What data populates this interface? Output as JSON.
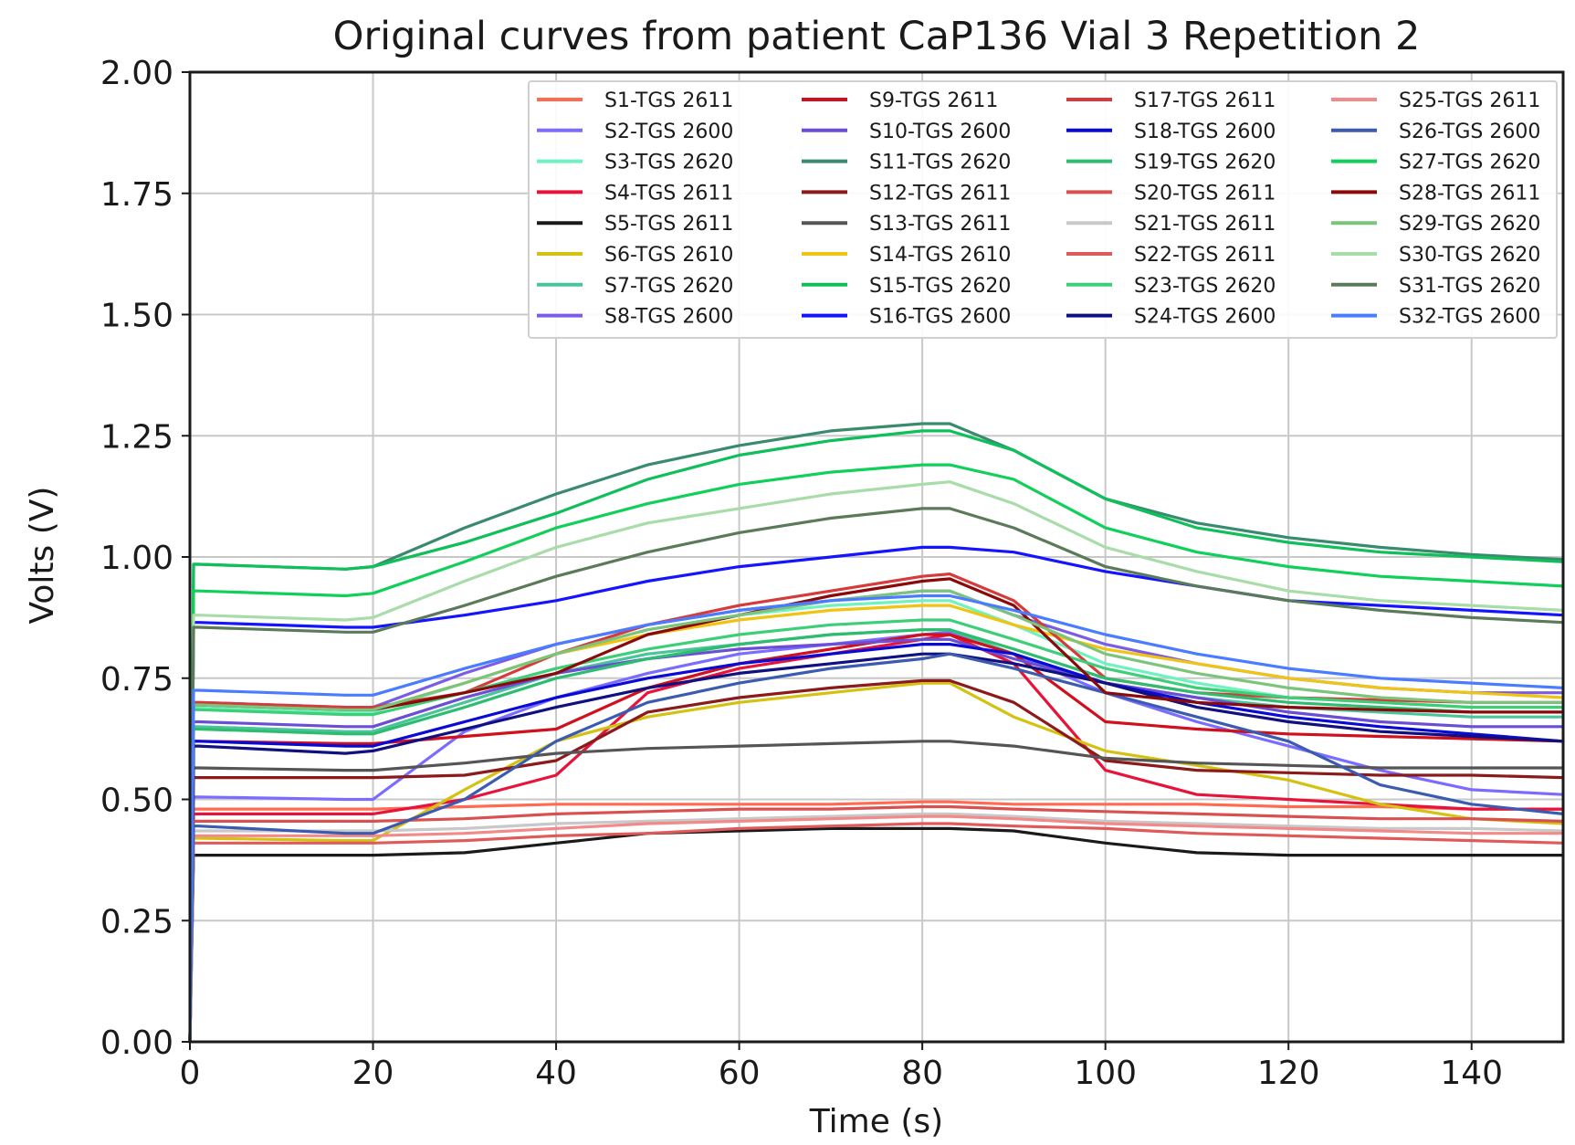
{
  "chart_data": {
    "type": "line",
    "title": "Original curves from patient CaP136 Vial 3 Repetition 2",
    "xlabel": "Time (s)",
    "ylabel": "Volts (V)",
    "xlim": [
      0,
      150
    ],
    "ylim": [
      0,
      2
    ],
    "grid": true,
    "legend_position": "top-right",
    "legend_columns": 4,
    "x_ticks": [
      0,
      20,
      40,
      60,
      80,
      100,
      120,
      140
    ],
    "y_ticks": [
      0,
      0.25,
      0.5,
      0.75,
      1.0,
      1.25,
      1.5,
      1.75,
      2.0
    ],
    "x_tick_labels": [
      "0",
      "20",
      "40",
      "60",
      "80",
      "100",
      "120",
      "140"
    ],
    "y_tick_labels": [
      "0.00",
      "0.25",
      "0.50",
      "0.75",
      "1.00",
      "1.25",
      "1.50",
      "1.75",
      "2.00"
    ],
    "x": [
      0,
      17,
      20,
      30,
      40,
      50,
      60,
      70,
      80,
      83,
      90,
      100,
      110,
      120,
      130,
      140,
      150
    ],
    "series": [
      {
        "name": "S1-TGS 2611",
        "color": "#ff6a50",
        "values": [
          0.48,
          0.48,
          0.48,
          0.485,
          0.49,
          0.49,
          0.49,
          0.49,
          0.495,
          0.495,
          0.49,
          0.49,
          0.49,
          0.485,
          0.485,
          0.48,
          0.48
        ]
      },
      {
        "name": "S2-TGS 2600",
        "color": "#7b6cff",
        "values": [
          0.505,
          0.5,
          0.5,
          0.64,
          0.71,
          0.76,
          0.8,
          0.82,
          0.84,
          0.845,
          0.8,
          0.72,
          0.66,
          0.61,
          0.56,
          0.52,
          0.51
        ]
      },
      {
        "name": "S3-TGS 2620",
        "color": "#6ef2c0",
        "values": [
          0.69,
          0.68,
          0.68,
          0.74,
          0.8,
          0.85,
          0.88,
          0.9,
          0.91,
          0.91,
          0.86,
          0.78,
          0.74,
          0.71,
          0.7,
          0.69,
          0.69
        ]
      },
      {
        "name": "S4-TGS 2611",
        "color": "#e8133a",
        "values": [
          0.47,
          0.47,
          0.47,
          0.5,
          0.55,
          0.72,
          0.77,
          0.8,
          0.83,
          0.84,
          0.78,
          0.56,
          0.51,
          0.5,
          0.49,
          0.48,
          0.48
        ]
      },
      {
        "name": "S5-TGS 2611",
        "color": "#1a1a1a",
        "values": [
          0.385,
          0.385,
          0.385,
          0.39,
          0.41,
          0.43,
          0.435,
          0.44,
          0.44,
          0.44,
          0.435,
          0.41,
          0.39,
          0.385,
          0.385,
          0.385,
          0.385
        ]
      },
      {
        "name": "S6-TGS 2610",
        "color": "#d4c212",
        "values": [
          0.42,
          0.415,
          0.415,
          0.52,
          0.62,
          0.67,
          0.7,
          0.72,
          0.74,
          0.74,
          0.67,
          0.6,
          0.57,
          0.54,
          0.49,
          0.46,
          0.45
        ]
      },
      {
        "name": "S7-TGS 2620",
        "color": "#4ac49a",
        "values": [
          0.65,
          0.64,
          0.64,
          0.7,
          0.76,
          0.8,
          0.82,
          0.84,
          0.85,
          0.85,
          0.8,
          0.74,
          0.71,
          0.69,
          0.68,
          0.67,
          0.67
        ]
      },
      {
        "name": "S8-TGS 2600",
        "color": "#7a5ce6",
        "values": [
          0.7,
          0.69,
          0.69,
          0.76,
          0.82,
          0.86,
          0.89,
          0.91,
          0.93,
          0.93,
          0.88,
          0.82,
          0.78,
          0.75,
          0.73,
          0.72,
          0.72
        ]
      },
      {
        "name": "S9-TGS 2611",
        "color": "#d0101c",
        "values": [
          0.62,
          0.615,
          0.615,
          0.63,
          0.645,
          0.73,
          0.78,
          0.81,
          0.84,
          0.84,
          0.8,
          0.66,
          0.645,
          0.635,
          0.63,
          0.625,
          0.62
        ]
      },
      {
        "name": "S10-TGS 2600",
        "color": "#6a4ed6",
        "values": [
          0.66,
          0.65,
          0.65,
          0.71,
          0.76,
          0.79,
          0.81,
          0.82,
          0.83,
          0.83,
          0.79,
          0.74,
          0.71,
          0.68,
          0.66,
          0.65,
          0.65
        ]
      },
      {
        "name": "S11-TGS 2620",
        "color": "#3a8a6e",
        "values": [
          0.985,
          0.975,
          0.98,
          1.06,
          1.13,
          1.19,
          1.23,
          1.26,
          1.275,
          1.275,
          1.22,
          1.12,
          1.07,
          1.04,
          1.02,
          1.005,
          0.995
        ]
      },
      {
        "name": "S12-TGS 2611",
        "color": "#8b1a1a",
        "values": [
          0.545,
          0.545,
          0.545,
          0.55,
          0.58,
          0.68,
          0.71,
          0.73,
          0.745,
          0.745,
          0.7,
          0.58,
          0.56,
          0.555,
          0.55,
          0.55,
          0.545
        ]
      },
      {
        "name": "S13-TGS 2611",
        "color": "#555555",
        "values": [
          0.565,
          0.56,
          0.56,
          0.575,
          0.595,
          0.605,
          0.61,
          0.615,
          0.62,
          0.62,
          0.61,
          0.585,
          0.575,
          0.57,
          0.565,
          0.565,
          0.565
        ]
      },
      {
        "name": "S14-TGS 2610",
        "color": "#f0c412",
        "values": [
          0.695,
          0.685,
          0.685,
          0.74,
          0.8,
          0.84,
          0.87,
          0.89,
          0.9,
          0.9,
          0.86,
          0.81,
          0.78,
          0.75,
          0.73,
          0.72,
          0.71
        ]
      },
      {
        "name": "S15-TGS 2620",
        "color": "#0fbf5a",
        "values": [
          0.985,
          0.975,
          0.98,
          1.03,
          1.09,
          1.16,
          1.21,
          1.24,
          1.26,
          1.26,
          1.22,
          1.12,
          1.06,
          1.03,
          1.01,
          1.0,
          0.99
        ]
      },
      {
        "name": "S16-TGS 2600",
        "color": "#1414ff",
        "values": [
          0.865,
          0.855,
          0.855,
          0.88,
          0.91,
          0.95,
          0.98,
          1.0,
          1.02,
          1.02,
          1.01,
          0.97,
          0.94,
          0.91,
          0.9,
          0.89,
          0.88
        ]
      },
      {
        "name": "S17-TGS 2611",
        "color": "#d63a3a",
        "values": [
          0.7,
          0.69,
          0.69,
          0.72,
          0.8,
          0.86,
          0.9,
          0.93,
          0.96,
          0.965,
          0.91,
          0.75,
          0.72,
          0.71,
          0.705,
          0.7,
          0.7
        ]
      },
      {
        "name": "S18-TGS 2600",
        "color": "#0a0ad6",
        "values": [
          0.62,
          0.61,
          0.61,
          0.66,
          0.71,
          0.75,
          0.78,
          0.8,
          0.82,
          0.82,
          0.8,
          0.74,
          0.7,
          0.67,
          0.65,
          0.635,
          0.62
        ]
      },
      {
        "name": "S19-TGS 2620",
        "color": "#2ebd70",
        "values": [
          0.645,
          0.635,
          0.635,
          0.69,
          0.75,
          0.79,
          0.82,
          0.84,
          0.85,
          0.85,
          0.81,
          0.75,
          0.72,
          0.7,
          0.69,
          0.68,
          0.68
        ]
      },
      {
        "name": "S20-TGS 2611",
        "color": "#d95050",
        "values": [
          0.455,
          0.455,
          0.455,
          0.46,
          0.47,
          0.475,
          0.48,
          0.48,
          0.485,
          0.485,
          0.48,
          0.475,
          0.47,
          0.465,
          0.46,
          0.46,
          0.455
        ]
      },
      {
        "name": "S21-TGS 2611",
        "color": "#c8c8c8",
        "values": [
          0.435,
          0.435,
          0.435,
          0.44,
          0.45,
          0.455,
          0.46,
          0.465,
          0.47,
          0.47,
          0.465,
          0.455,
          0.45,
          0.445,
          0.44,
          0.44,
          0.435
        ]
      },
      {
        "name": "S22-TGS 2611",
        "color": "#e05a5a",
        "values": [
          0.41,
          0.41,
          0.41,
          0.415,
          0.425,
          0.43,
          0.44,
          0.445,
          0.45,
          0.45,
          0.445,
          0.44,
          0.43,
          0.425,
          0.42,
          0.415,
          0.41
        ]
      },
      {
        "name": "S23-TGS 2620",
        "color": "#3ccf78",
        "values": [
          0.685,
          0.675,
          0.675,
          0.72,
          0.77,
          0.81,
          0.84,
          0.86,
          0.87,
          0.87,
          0.83,
          0.77,
          0.73,
          0.71,
          0.7,
          0.69,
          0.69
        ]
      },
      {
        "name": "S24-TGS 2600",
        "color": "#101080",
        "values": [
          0.61,
          0.595,
          0.6,
          0.645,
          0.69,
          0.73,
          0.76,
          0.78,
          0.8,
          0.8,
          0.78,
          0.74,
          0.69,
          0.66,
          0.64,
          0.63,
          0.62
        ]
      },
      {
        "name": "S25-TGS 2611",
        "color": "#f28a8a",
        "values": [
          0.425,
          0.425,
          0.425,
          0.43,
          0.44,
          0.45,
          0.455,
          0.46,
          0.465,
          0.465,
          0.46,
          0.45,
          0.445,
          0.44,
          0.435,
          0.43,
          0.43
        ]
      },
      {
        "name": "S26-TGS 2600",
        "color": "#3b5bb0",
        "values": [
          0.445,
          0.43,
          0.43,
          0.5,
          0.62,
          0.7,
          0.74,
          0.77,
          0.79,
          0.8,
          0.77,
          0.72,
          0.67,
          0.62,
          0.53,
          0.49,
          0.47
        ]
      },
      {
        "name": "S27-TGS 2620",
        "color": "#10d05a",
        "values": [
          0.93,
          0.92,
          0.925,
          0.99,
          1.06,
          1.11,
          1.15,
          1.175,
          1.19,
          1.19,
          1.16,
          1.06,
          1.01,
          0.98,
          0.96,
          0.95,
          0.94
        ]
      },
      {
        "name": "S28-TGS 2611",
        "color": "#8a0a0a",
        "values": [
          0.695,
          0.685,
          0.685,
          0.72,
          0.76,
          0.84,
          0.88,
          0.92,
          0.95,
          0.955,
          0.9,
          0.72,
          0.7,
          0.69,
          0.685,
          0.68,
          0.68
        ]
      },
      {
        "name": "S29-TGS 2620",
        "color": "#7cc47c",
        "values": [
          0.695,
          0.685,
          0.685,
          0.74,
          0.8,
          0.85,
          0.88,
          0.91,
          0.93,
          0.93,
          0.88,
          0.8,
          0.76,
          0.73,
          0.71,
          0.7,
          0.7
        ]
      },
      {
        "name": "S30-TGS 2620",
        "color": "#a8dca8",
        "values": [
          0.88,
          0.87,
          0.875,
          0.95,
          1.02,
          1.07,
          1.1,
          1.13,
          1.15,
          1.155,
          1.11,
          1.02,
          0.97,
          0.93,
          0.91,
          0.9,
          0.89
        ]
      },
      {
        "name": "S31-TGS 2620",
        "color": "#5a7a5a",
        "values": [
          0.855,
          0.845,
          0.845,
          0.9,
          0.96,
          1.01,
          1.05,
          1.08,
          1.1,
          1.1,
          1.06,
          0.98,
          0.94,
          0.91,
          0.89,
          0.875,
          0.865
        ]
      },
      {
        "name": "S32-TGS 2600",
        "color": "#4a7cff",
        "values": [
          0.725,
          0.715,
          0.715,
          0.77,
          0.82,
          0.86,
          0.89,
          0.91,
          0.92,
          0.92,
          0.89,
          0.84,
          0.8,
          0.77,
          0.75,
          0.74,
          0.73
        ]
      }
    ]
  }
}
